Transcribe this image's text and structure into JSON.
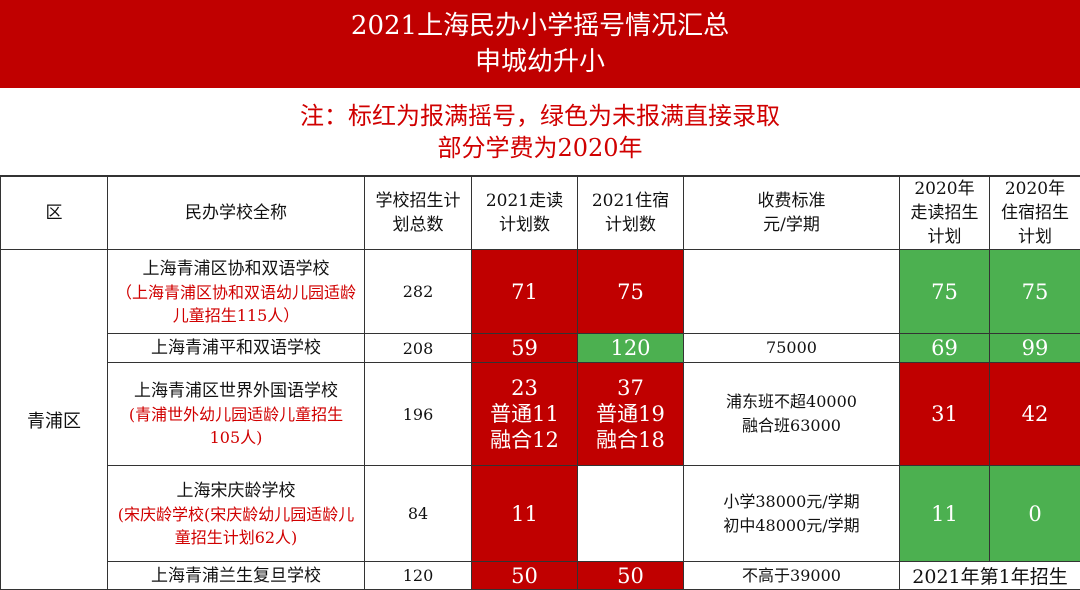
{
  "title": {
    "line1": "2021上海民办小学摇号情况汇总",
    "line2": "申城幼升小"
  },
  "note": {
    "line1": "注：标红为报满摇号，绿色为未报满直接录取",
    "line2": "部分学费为2020年"
  },
  "headers": {
    "district": "区",
    "name": "民办学校全称",
    "total": "学校招生计划总数",
    "walk2021": "2021走读计划数",
    "board2021": "2021住宿计划数",
    "fee": "收费标准元/学期",
    "walk2020": "2020年走读招生计划",
    "board2020": "2020年住宿招生计划"
  },
  "district": "青浦区",
  "rows": [
    {
      "name": "上海青浦区协和双语学校",
      "sub": "（上海青浦区协和双语幼儿园适龄儿童招生115人）",
      "total": "282",
      "walk2021": [
        "71"
      ],
      "board2021": [
        "75"
      ],
      "fee": [],
      "walk2020": "75",
      "board2020": "75"
    },
    {
      "name": "上海青浦平和双语学校",
      "sub": "",
      "total": "208",
      "walk2021": [
        "59"
      ],
      "board2021": [
        "120"
      ],
      "fee": [
        "75000"
      ],
      "walk2020": "69",
      "board2020": "99"
    },
    {
      "name": "上海青浦区世界外国语学校",
      "sub": "(青浦世外幼儿园适龄儿童招生105人)",
      "total": "196",
      "walk2021": [
        "23",
        "普通11",
        "融合12"
      ],
      "board2021": [
        "37",
        "普通19",
        "融合18"
      ],
      "fee": [
        "浦东班不超40000",
        "融合班63000"
      ],
      "walk2020": "31",
      "board2020": "42"
    },
    {
      "name": "上海宋庆龄学校",
      "sub": "(宋庆龄学校(宋庆龄幼儿园适龄儿童招生计划62人)",
      "total": "84",
      "walk2021": [
        "11"
      ],
      "board2021": [],
      "fee": [
        "小学38000元/学期",
        "初中48000元/学期"
      ],
      "walk2020": "11",
      "board2020": "0"
    },
    {
      "name": "上海青浦兰生复旦学校",
      "sub": "",
      "total": "120",
      "walk2021": [
        "50"
      ],
      "board2021": [
        "50"
      ],
      "fee": [
        "不高于39000"
      ],
      "note2020": "2021年第1年招生"
    }
  ],
  "colors": {
    "red": "#c00000",
    "green": "#4cb050"
  }
}
